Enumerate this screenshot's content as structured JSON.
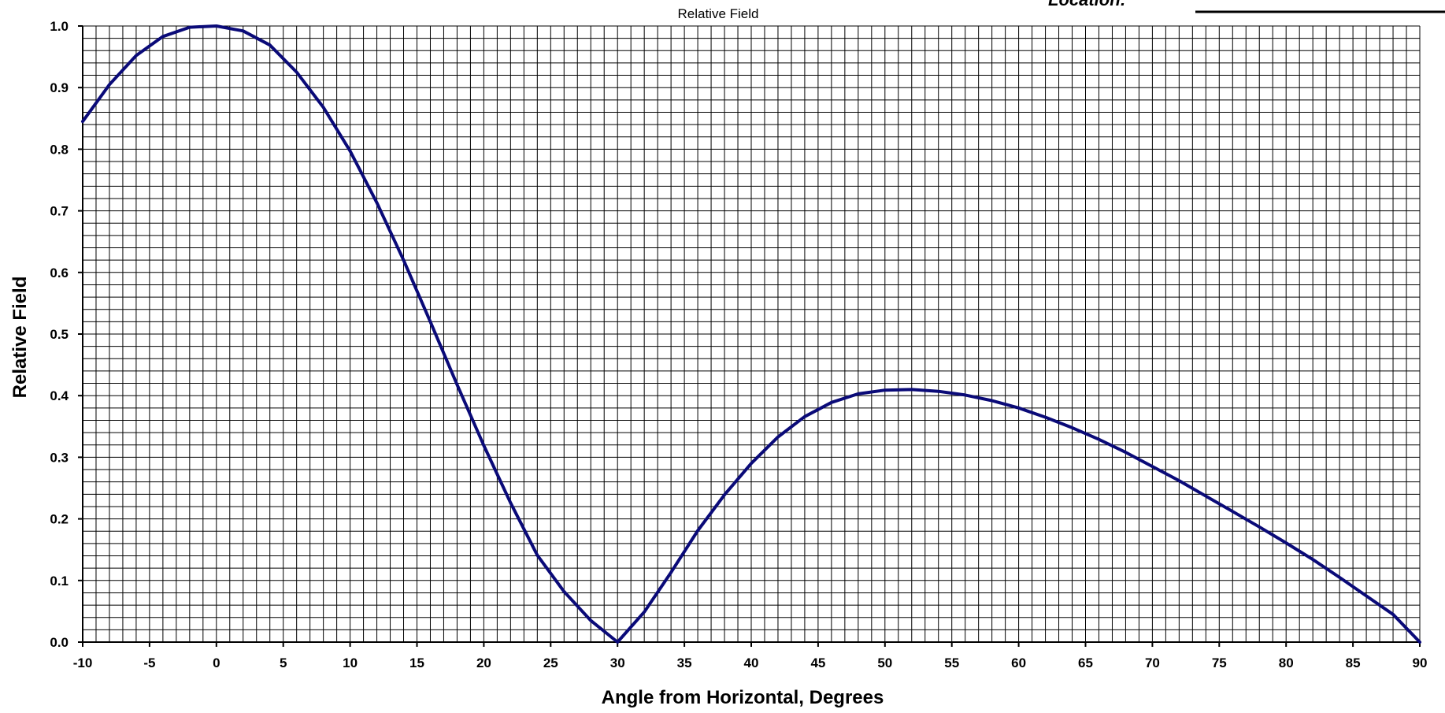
{
  "header": {
    "location_label": "Location:"
  },
  "chart_data": {
    "type": "line",
    "title": "Relative Field",
    "xlabel": "Angle from Horizontal, Degrees",
    "ylabel": "Relative Field",
    "xlim": [
      -10,
      90
    ],
    "ylim": [
      0,
      1
    ],
    "grid": true,
    "x_ticks": [
      -10,
      -5,
      0,
      5,
      10,
      15,
      20,
      25,
      30,
      35,
      40,
      45,
      50,
      55,
      60,
      65,
      70,
      75,
      80,
      85,
      90
    ],
    "y_ticks": [
      0.0,
      0.1,
      0.2,
      0.3,
      0.4,
      0.5,
      0.6,
      0.7,
      0.8,
      0.9,
      1.0
    ],
    "series": [
      {
        "color": "#0a0a78",
        "x": [
          -10,
          -8,
          -6,
          -4,
          -2,
          0,
          2,
          4,
          6,
          8,
          10,
          12,
          14,
          16,
          18,
          20,
          22,
          24,
          26,
          28,
          30,
          32,
          34,
          36,
          38,
          40,
          42,
          44,
          46,
          48,
          50,
          52,
          54,
          56,
          58,
          60,
          62,
          64,
          66,
          68,
          70,
          72,
          74,
          76,
          78,
          80,
          82,
          84,
          86,
          88,
          90
        ],
        "y": [
          0.845,
          0.905,
          0.952,
          0.983,
          0.998,
          1.0,
          0.992,
          0.969,
          0.925,
          0.868,
          0.797,
          0.713,
          0.62,
          0.52,
          0.418,
          0.319,
          0.226,
          0.141,
          0.082,
          0.035,
          0.0,
          0.049,
          0.113,
          0.181,
          0.239,
          0.29,
          0.333,
          0.366,
          0.389,
          0.403,
          0.409,
          0.41,
          0.407,
          0.401,
          0.392,
          0.38,
          0.365,
          0.348,
          0.329,
          0.308,
          0.285,
          0.262,
          0.237,
          0.212,
          0.187,
          0.161,
          0.134,
          0.105,
          0.075,
          0.045,
          0.0
        ]
      }
    ]
  }
}
